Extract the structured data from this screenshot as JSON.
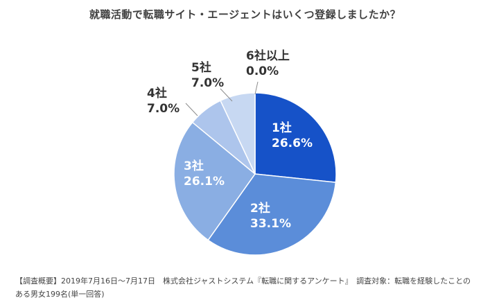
{
  "chart_data": {
    "type": "pie",
    "title": "就職活動で転職サイト・エージェントはいくつ登録しましたか？",
    "categories": [
      "1社",
      "2社",
      "3社",
      "4社",
      "5社",
      "6社以上"
    ],
    "values": [
      26.6,
      33.1,
      26.1,
      7.0,
      7.0,
      0.0
    ],
    "value_labels": [
      "26.6%",
      "33.1%",
      "26.1%",
      "7.0%",
      "7.0%",
      "0.0%"
    ],
    "colors": [
      "#1652c8",
      "#5b8dd9",
      "#8aaee3",
      "#adc5ec",
      "#c7d8f2",
      "#dde7f7"
    ],
    "legend": "none",
    "start": "12 o'clock, clockwise"
  },
  "footnote": "【調査概要】2019年7月16日～7月17日　株式会社ジャストシステム『転職に関するアンケート』　調査対象：転職を経験したことのある男女199名(単一回答)"
}
